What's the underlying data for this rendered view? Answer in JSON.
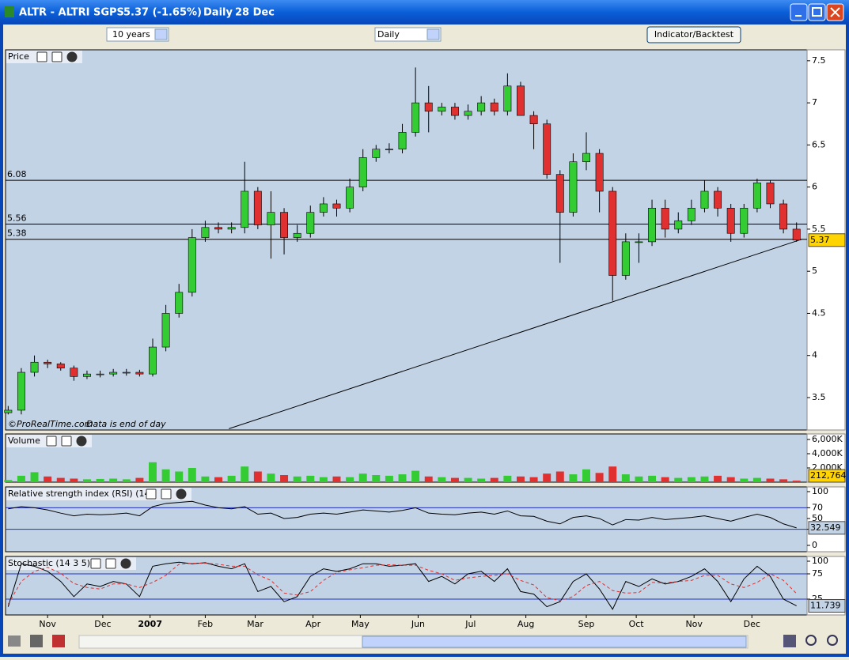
{
  "window": {
    "symbol": "ALTR - ALTRI SGPS",
    "quote": "5.37 (-1.65%)",
    "period": "Daily",
    "date": "28 Dec",
    "range_select": "10 years",
    "interval_select": "Daily",
    "button": "Indicator/Backtest",
    "source": "©ProRealTime.com",
    "note": "Data is end of day"
  },
  "chart_data": [
    {
      "type": "candlestick",
      "title": "Price",
      "x": [
        0,
        5,
        10,
        15,
        20,
        25,
        30,
        35,
        40,
        45,
        50,
        55,
        60,
        65,
        70,
        75,
        80,
        85,
        90,
        95,
        100,
        105,
        110,
        115,
        120,
        125,
        130,
        135,
        140,
        145,
        150,
        155,
        160,
        165,
        170,
        175,
        180,
        185,
        190,
        195,
        200,
        205,
        210,
        215,
        220,
        225,
        230,
        235,
        240,
        245,
        250,
        255,
        260,
        265,
        270,
        275,
        280,
        285,
        290,
        295,
        300
      ],
      "xlim": [
        -1,
        304
      ],
      "open": [
        3.32,
        3.35,
        3.8,
        3.92,
        3.9,
        3.85,
        3.75,
        3.78,
        3.78,
        3.8,
        3.8,
        3.78,
        4.1,
        4.5,
        4.75,
        5.4,
        5.52,
        5.5,
        5.52,
        5.95,
        5.55,
        5.7,
        5.4,
        5.45,
        5.7,
        5.8,
        5.75,
        6.0,
        6.35,
        6.45,
        6.45,
        6.65,
        7.0,
        6.9,
        6.95,
        6.85,
        6.9,
        7.0,
        6.9,
        7.2,
        6.85,
        6.75,
        6.15,
        5.7,
        6.3,
        6.4,
        5.95,
        4.95,
        5.35,
        5.35,
        5.75,
        5.5,
        5.6,
        5.75,
        5.95,
        5.75,
        5.45,
        5.75,
        6.05,
        5.8,
        5.5
      ],
      "high": [
        3.4,
        3.85,
        4.0,
        3.95,
        3.92,
        3.88,
        3.82,
        3.82,
        3.84,
        3.84,
        3.83,
        4.2,
        4.6,
        4.85,
        5.5,
        5.6,
        5.58,
        5.58,
        6.3,
        6.0,
        5.95,
        5.75,
        5.55,
        5.78,
        5.88,
        5.85,
        6.1,
        6.45,
        6.5,
        6.52,
        6.75,
        7.42,
        7.2,
        7.0,
        7.0,
        6.98,
        7.08,
        7.05,
        7.35,
        7.25,
        6.9,
        6.8,
        6.2,
        6.4,
        6.65,
        6.45,
        6.0,
        5.45,
        5.45,
        5.85,
        5.85,
        5.7,
        5.85,
        6.08,
        6.0,
        5.8,
        5.8,
        6.1,
        6.08,
        5.85,
        5.58
      ],
      "low": [
        3.3,
        3.3,
        3.75,
        3.85,
        3.82,
        3.7,
        3.72,
        3.74,
        3.75,
        3.76,
        3.75,
        3.75,
        4.05,
        4.45,
        4.7,
        5.35,
        5.45,
        5.45,
        5.45,
        5.5,
        5.15,
        5.2,
        5.35,
        5.4,
        5.65,
        5.65,
        5.7,
        5.95,
        6.3,
        6.4,
        6.4,
        6.6,
        6.65,
        6.85,
        6.8,
        6.8,
        6.85,
        6.85,
        6.85,
        6.85,
        6.45,
        6.1,
        5.1,
        5.65,
        6.2,
        5.7,
        4.65,
        4.9,
        5.1,
        5.3,
        5.4,
        5.45,
        5.55,
        5.7,
        5.65,
        5.35,
        5.4,
        5.7,
        5.75,
        5.45,
        5.35
      ],
      "close": [
        3.35,
        3.8,
        3.92,
        3.9,
        3.85,
        3.75,
        3.78,
        3.78,
        3.8,
        3.8,
        3.78,
        4.1,
        4.5,
        4.75,
        5.4,
        5.52,
        5.5,
        5.52,
        5.95,
        5.55,
        5.7,
        5.4,
        5.45,
        5.7,
        5.8,
        5.75,
        6.0,
        6.35,
        6.45,
        6.45,
        6.65,
        7.0,
        6.9,
        6.95,
        6.85,
        6.9,
        7.0,
        6.9,
        7.2,
        6.85,
        6.75,
        6.15,
        5.7,
        6.3,
        6.4,
        5.95,
        4.95,
        5.35,
        5.35,
        5.75,
        5.5,
        5.6,
        5.75,
        5.95,
        5.75,
        5.45,
        5.75,
        6.05,
        5.8,
        5.5,
        5.37
      ],
      "up_color": "#33cc33",
      "down_color": "#e03030",
      "ylim": [
        3.115,
        7.63
      ],
      "yticks": [
        3.5,
        4,
        4.5,
        5,
        5.5,
        6,
        6.5,
        7,
        7.5
      ],
      "hlines": [
        6.08,
        5.56,
        5.38
      ],
      "trendline": {
        "x": [
          84,
          302
        ],
        "values": [
          3.13,
          5.38
        ]
      }
    },
    {
      "type": "bar",
      "title": "Volume",
      "values": [
        300000,
        900000,
        1400000,
        800000,
        600000,
        500000,
        400000,
        450000,
        500000,
        400000,
        600000,
        2800000,
        1800000,
        1500000,
        2000000,
        800000,
        700000,
        900000,
        2200000,
        1500000,
        1200000,
        1000000,
        800000,
        900000,
        700000,
        800000,
        700000,
        1200000,
        1000000,
        900000,
        1100000,
        1600000,
        800000,
        700000,
        600000,
        600000,
        500000,
        600000,
        900000,
        800000,
        700000,
        1200000,
        1500000,
        1100000,
        1800000,
        1300000,
        2200000,
        1100000,
        800000,
        900000,
        700000,
        600000,
        700000,
        800000,
        900000,
        700000,
        500000,
        600000,
        500000,
        400000,
        212764
      ],
      "value_labels": [
        null,
        null,
        null,
        null,
        null,
        null,
        null,
        null,
        null,
        null,
        null,
        null,
        null,
        null,
        null,
        null,
        null,
        null,
        null,
        null,
        null,
        null,
        null,
        null,
        null,
        null,
        null,
        null,
        null,
        null,
        null,
        null,
        null,
        null,
        null,
        null,
        null,
        null,
        null,
        null,
        null,
        null,
        null,
        null,
        null,
        null,
        null,
        null,
        null,
        null,
        null,
        null,
        null,
        null,
        null,
        null,
        null,
        null,
        null,
        null,
        "212,764"
      ],
      "ylim": [
        0,
        6780000
      ],
      "yticks": [
        {
          "value": 2000000,
          "label": "2,000K"
        },
        {
          "value": 4000000,
          "label": "4,000K"
        },
        {
          "value": 6000000,
          "label": "6,000K"
        }
      ]
    },
    {
      "type": "line",
      "title": "Relative strength index (RSI) (14)",
      "series": [
        {
          "color": "#000000",
          "values": [
            68,
            72,
            70,
            66,
            60,
            55,
            58,
            57,
            58,
            60,
            55,
            72,
            78,
            80,
            82,
            75,
            70,
            68,
            72,
            58,
            60,
            50,
            52,
            58,
            60,
            58,
            62,
            66,
            64,
            62,
            65,
            70,
            60,
            58,
            57,
            60,
            62,
            58,
            64,
            55,
            54,
            45,
            40,
            52,
            55,
            50,
            38,
            48,
            47,
            52,
            48,
            50,
            52,
            55,
            50,
            45,
            52,
            58,
            52,
            40,
            32.549
          ]
        }
      ],
      "ylim": [
        -11.8,
        108.8
      ],
      "yticks": [
        0,
        30,
        50,
        70,
        100
      ],
      "guides": [
        30,
        70
      ]
    },
    {
      "type": "line",
      "title": "Stochastic (14 3 5)",
      "series": [
        {
          "color": "#000000",
          "values": [
            10,
            95,
            90,
            80,
            60,
            30,
            55,
            50,
            60,
            55,
            30,
            90,
            95,
            98,
            95,
            97,
            90,
            85,
            95,
            40,
            50,
            20,
            30,
            70,
            85,
            80,
            85,
            95,
            95,
            90,
            92,
            95,
            60,
            70,
            55,
            75,
            80,
            60,
            85,
            40,
            35,
            10,
            20,
            60,
            75,
            45,
            5,
            60,
            50,
            65,
            55,
            60,
            70,
            85,
            60,
            20,
            65,
            90,
            70,
            25,
            11.739
          ]
        },
        {
          "color": "#e03030",
          "dashed": true,
          "values": [
            15,
            60,
            80,
            88,
            76,
            56,
            48,
            45,
            55,
            55,
            48,
            58,
            72,
            94,
            96,
            96,
            94,
            90,
            90,
            73,
            62,
            37,
            33,
            40,
            62,
            78,
            83,
            87,
            92,
            93,
            92,
            92,
            82,
            75,
            62,
            67,
            70,
            72,
            75,
            62,
            53,
            28,
            22,
            30,
            52,
            60,
            42,
            37,
            38,
            58,
            57,
            60,
            62,
            72,
            72,
            55,
            48,
            58,
            75,
            62,
            36
          ]
        }
      ],
      "ylim": [
        -6.25,
        109.4
      ],
      "yticks": [
        25,
        75,
        100
      ],
      "guides": [
        25,
        75
      ],
      "xticks": [
        {
          "value": 15,
          "label": "Nov"
        },
        {
          "value": 36,
          "label": "Dec"
        },
        {
          "value": 54,
          "label": "2007"
        },
        {
          "value": 75,
          "label": "Feb"
        },
        {
          "value": 94,
          "label": "Mar"
        },
        {
          "value": 116,
          "label": "Apr"
        },
        {
          "value": 134,
          "label": "May"
        },
        {
          "value": 156,
          "label": "Jun"
        },
        {
          "value": 176,
          "label": "Jul"
        },
        {
          "value": 197,
          "label": "Aug"
        },
        {
          "value": 220,
          "label": "Sep"
        },
        {
          "value": 239,
          "label": "Oct"
        },
        {
          "value": 261,
          "label": "Nov"
        },
        {
          "value": 283,
          "label": "Dec"
        }
      ]
    }
  ]
}
